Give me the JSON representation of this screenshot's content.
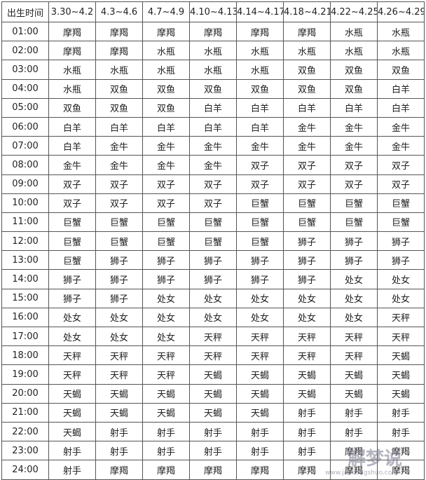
{
  "table": {
    "header": [
      "出生时间",
      "3.30~4.2",
      "4.3~4.6",
      "4.7~4.9",
      "4.10~4.13",
      "4.14~4.17",
      "4.18~4.21",
      "4.22~4.25",
      "4.26~4.29"
    ],
    "rows": [
      [
        "01:00",
        "摩羯",
        "摩羯",
        "摩羯",
        "摩羯",
        "摩羯",
        "摩羯",
        "水瓶",
        "水瓶"
      ],
      [
        "02:00",
        "摩羯",
        "摩羯",
        "水瓶",
        "水瓶",
        "水瓶",
        "水瓶",
        "水瓶",
        "水瓶"
      ],
      [
        "03:00",
        "水瓶",
        "水瓶",
        "水瓶",
        "水瓶",
        "水瓶",
        "双鱼",
        "双鱼",
        "双鱼"
      ],
      [
        "04:00",
        "水瓶",
        "双鱼",
        "双鱼",
        "双鱼",
        "双鱼",
        "双鱼",
        "双鱼",
        "白羊"
      ],
      [
        "05:00",
        "双鱼",
        "双鱼",
        "双鱼",
        "白羊",
        "白羊",
        "白羊",
        "白羊",
        "白羊"
      ],
      [
        "06:00",
        "白羊",
        "白羊",
        "白羊",
        "白羊",
        "白羊",
        "金牛",
        "金牛",
        "金牛"
      ],
      [
        "07:00",
        "白羊",
        "金牛",
        "金牛",
        "金牛",
        "金牛",
        "金牛",
        "金牛",
        "金牛"
      ],
      [
        "08:00",
        "金牛",
        "金牛",
        "金牛",
        "金牛",
        "双子",
        "双子",
        "双子",
        "双子"
      ],
      [
        "09:00",
        "双子",
        "双子",
        "双子",
        "双子",
        "双子",
        "双子",
        "双子",
        "双子"
      ],
      [
        "10:00",
        "双子",
        "双子",
        "双子",
        "双子",
        "巨蟹",
        "巨蟹",
        "巨蟹",
        "巨蟹"
      ],
      [
        "11:00",
        "巨蟹",
        "巨蟹",
        "巨蟹",
        "巨蟹",
        "巨蟹",
        "巨蟹",
        "巨蟹",
        "巨蟹"
      ],
      [
        "12:00",
        "巨蟹",
        "巨蟹",
        "巨蟹",
        "巨蟹",
        "巨蟹",
        "狮子",
        "狮子",
        "狮子"
      ],
      [
        "13:00",
        "巨蟹",
        "狮子",
        "狮子",
        "狮子",
        "狮子",
        "狮子",
        "狮子",
        "狮子"
      ],
      [
        "14:00",
        "狮子",
        "狮子",
        "狮子",
        "狮子",
        "狮子",
        "狮子",
        "处女",
        "处女"
      ],
      [
        "15:00",
        "狮子",
        "狮子",
        "处女",
        "处女",
        "处女",
        "处女",
        "处女",
        "处女"
      ],
      [
        "16:00",
        "处女",
        "处女",
        "处女",
        "处女",
        "处女",
        "处女",
        "处女",
        "天秤"
      ],
      [
        "17:00",
        "处女",
        "处女",
        "处女",
        "天秤",
        "天秤",
        "天秤",
        "天秤",
        "天秤"
      ],
      [
        "18:00",
        "天秤",
        "天秤",
        "天秤",
        "天秤",
        "天秤",
        "天秤",
        "天秤",
        "天蝎"
      ],
      [
        "19:00",
        "天秤",
        "天秤",
        "天秤",
        "天蝎",
        "天蝎",
        "天蝎",
        "天蝎",
        "天蝎"
      ],
      [
        "20:00",
        "天蝎",
        "天蝎",
        "天蝎",
        "天蝎",
        "天蝎",
        "天蝎",
        "天蝎",
        "天蝎"
      ],
      [
        "21:00",
        "天蝎",
        "天蝎",
        "天蝎",
        "天蝎",
        "天蝎",
        "射手",
        "射手",
        "射手"
      ],
      [
        "22:00",
        "天蝎",
        "射手",
        "射手",
        "射手",
        "射手",
        "射手",
        "射手",
        "射手"
      ],
      [
        "23:00",
        "射手",
        "射手",
        "射手",
        "射手",
        "射手",
        "射手",
        "摩羯",
        "摩羯"
      ],
      [
        "24:00",
        "射手",
        "摩羯",
        "摩羯",
        "摩羯",
        "摩羯",
        "摩羯",
        "摩羯",
        "摩羯"
      ]
    ]
  },
  "watermark": {
    "logo": "解梦说",
    "url": "www.jiemengshuo.com"
  }
}
